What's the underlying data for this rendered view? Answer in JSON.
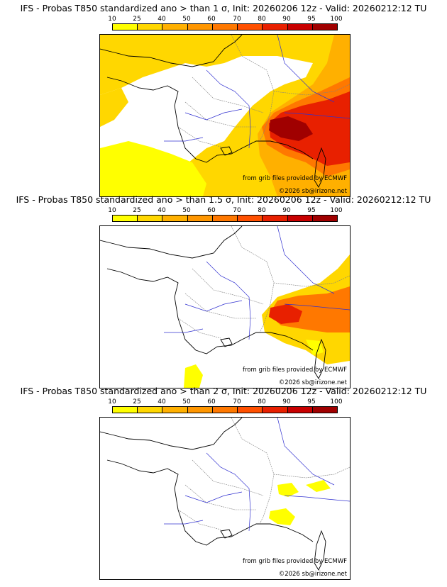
{
  "panels": [
    {
      "title": "IFS - Probas T850  standardized ano > than 1 σ, Init: 20260206 12z - Valid: 20260212:12 TU",
      "source_credit": "from grib files provided by ECMWF",
      "copyright": "©2026 sb@irizone.net",
      "coverage_level": "wide"
    },
    {
      "title": "IFS - Probas T850  standardized ano > than 1.5 σ, Init: 20260206 12z - Valid: 20260212:12 TU",
      "source_credit": "from grib files provided by ECMWF",
      "copyright": "©2026 sb@irizone.net",
      "coverage_level": "medium"
    },
    {
      "title": "IFS - Probas T850  standardized ano > than 2 σ, Init: 20260206 12z - Valid: 20260212:12 TU",
      "source_credit": "from grib files provided by ECMWF",
      "copyright": "©2026 sb@irizone.net",
      "coverage_level": "small"
    }
  ],
  "legend": {
    "ticks": [
      "10",
      "25",
      "40",
      "50",
      "60",
      "70",
      "80",
      "90",
      "95",
      "100"
    ],
    "colors": [
      "#ffff00",
      "#ffd700",
      "#ffb000",
      "#ff9600",
      "#ff7800",
      "#ff5000",
      "#e82000",
      "#c80000",
      "#a00000",
      "#600000"
    ]
  },
  "map_colors": {
    "border": "#606060",
    "rivers": "#3030d0",
    "coast": "#000000"
  }
}
